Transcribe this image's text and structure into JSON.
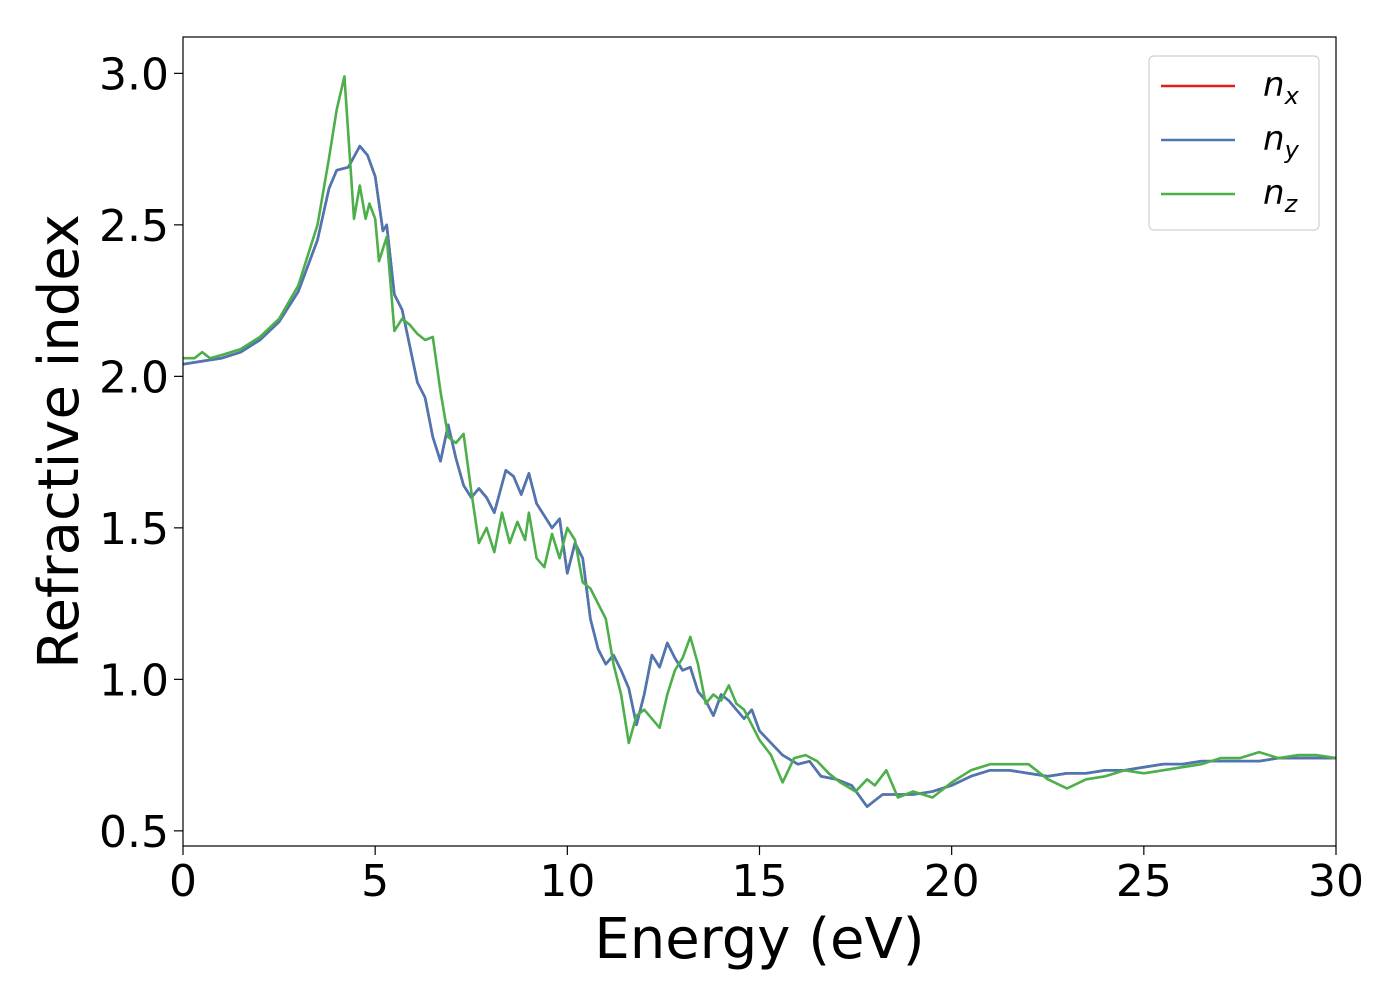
{
  "chart_data": {
    "type": "line",
    "xlabel": "Energy (eV)",
    "ylabel": "Refractive index",
    "xlim": [
      0,
      30
    ],
    "ylim": [
      0.45,
      3.12
    ],
    "xticks": [
      0,
      5,
      10,
      15,
      20,
      25,
      30
    ],
    "xtick_labels": [
      "0",
      "5",
      "10",
      "15",
      "20",
      "25",
      "30"
    ],
    "yticks": [
      0.5,
      1.0,
      1.5,
      2.0,
      2.5,
      3.0
    ],
    "ytick_labels": [
      "0.5",
      "1.0",
      "1.5",
      "2.0",
      "2.5",
      "3.0"
    ],
    "grid": false,
    "legend_position": "top-right",
    "series": [
      {
        "name": "n_x",
        "label_base": "n",
        "label_sub": "x",
        "color": "#e41a1c",
        "points": [
          [
            0,
            2.04
          ],
          [
            0.5,
            2.05
          ],
          [
            1,
            2.06
          ],
          [
            1.5,
            2.08
          ],
          [
            2,
            2.12
          ],
          [
            2.5,
            2.18
          ],
          [
            3,
            2.28
          ],
          [
            3.5,
            2.45
          ],
          [
            3.8,
            2.62
          ],
          [
            4.0,
            2.68
          ],
          [
            4.3,
            2.69
          ],
          [
            4.6,
            2.76
          ],
          [
            4.8,
            2.73
          ],
          [
            5.0,
            2.66
          ],
          [
            5.2,
            2.48
          ],
          [
            5.3,
            2.5
          ],
          [
            5.5,
            2.27
          ],
          [
            5.7,
            2.22
          ],
          [
            5.9,
            2.1
          ],
          [
            6.1,
            1.98
          ],
          [
            6.3,
            1.93
          ],
          [
            6.5,
            1.8
          ],
          [
            6.7,
            1.72
          ],
          [
            6.9,
            1.84
          ],
          [
            7.1,
            1.73
          ],
          [
            7.3,
            1.64
          ],
          [
            7.5,
            1.6
          ],
          [
            7.7,
            1.63
          ],
          [
            7.9,
            1.6
          ],
          [
            8.1,
            1.55
          ],
          [
            8.4,
            1.69
          ],
          [
            8.6,
            1.67
          ],
          [
            8.8,
            1.61
          ],
          [
            9.0,
            1.68
          ],
          [
            9.2,
            1.58
          ],
          [
            9.4,
            1.54
          ],
          [
            9.6,
            1.5
          ],
          [
            9.8,
            1.53
          ],
          [
            10.0,
            1.35
          ],
          [
            10.2,
            1.45
          ],
          [
            10.4,
            1.4
          ],
          [
            10.6,
            1.2
          ],
          [
            10.8,
            1.1
          ],
          [
            11.0,
            1.05
          ],
          [
            11.2,
            1.08
          ],
          [
            11.4,
            1.03
          ],
          [
            11.6,
            0.97
          ],
          [
            11.8,
            0.85
          ],
          [
            12.0,
            0.95
          ],
          [
            12.2,
            1.08
          ],
          [
            12.4,
            1.04
          ],
          [
            12.6,
            1.12
          ],
          [
            12.8,
            1.07
          ],
          [
            13.0,
            1.03
          ],
          [
            13.2,
            1.04
          ],
          [
            13.4,
            0.96
          ],
          [
            13.6,
            0.93
          ],
          [
            13.8,
            0.88
          ],
          [
            14.0,
            0.95
          ],
          [
            14.2,
            0.93
          ],
          [
            14.4,
            0.9
          ],
          [
            14.6,
            0.87
          ],
          [
            14.8,
            0.9
          ],
          [
            15.0,
            0.83
          ],
          [
            15.3,
            0.79
          ],
          [
            15.6,
            0.75
          ],
          [
            16.0,
            0.72
          ],
          [
            16.3,
            0.73
          ],
          [
            16.6,
            0.68
          ],
          [
            17.0,
            0.67
          ],
          [
            17.4,
            0.65
          ],
          [
            17.8,
            0.58
          ],
          [
            18.2,
            0.62
          ],
          [
            18.6,
            0.62
          ],
          [
            19.0,
            0.62
          ],
          [
            19.5,
            0.63
          ],
          [
            20.0,
            0.65
          ],
          [
            20.5,
            0.68
          ],
          [
            21.0,
            0.7
          ],
          [
            21.5,
            0.7
          ],
          [
            22.0,
            0.69
          ],
          [
            22.5,
            0.68
          ],
          [
            23.0,
            0.69
          ],
          [
            23.5,
            0.69
          ],
          [
            24.0,
            0.7
          ],
          [
            24.5,
            0.7
          ],
          [
            25.0,
            0.71
          ],
          [
            25.5,
            0.72
          ],
          [
            26.0,
            0.72
          ],
          [
            26.5,
            0.73
          ],
          [
            27.0,
            0.73
          ],
          [
            27.5,
            0.73
          ],
          [
            28.0,
            0.73
          ],
          [
            28.5,
            0.74
          ],
          [
            29.0,
            0.74
          ],
          [
            29.5,
            0.74
          ],
          [
            30.0,
            0.74
          ]
        ]
      },
      {
        "name": "n_y",
        "label_base": "n",
        "label_sub": "y",
        "color": "#4a78b4",
        "points": [
          [
            0,
            2.04
          ],
          [
            0.5,
            2.05
          ],
          [
            1,
            2.06
          ],
          [
            1.5,
            2.08
          ],
          [
            2,
            2.12
          ],
          [
            2.5,
            2.18
          ],
          [
            3,
            2.28
          ],
          [
            3.5,
            2.45
          ],
          [
            3.8,
            2.62
          ],
          [
            4.0,
            2.68
          ],
          [
            4.3,
            2.69
          ],
          [
            4.6,
            2.76
          ],
          [
            4.8,
            2.73
          ],
          [
            5.0,
            2.66
          ],
          [
            5.2,
            2.48
          ],
          [
            5.3,
            2.5
          ],
          [
            5.5,
            2.27
          ],
          [
            5.7,
            2.22
          ],
          [
            5.9,
            2.1
          ],
          [
            6.1,
            1.98
          ],
          [
            6.3,
            1.93
          ],
          [
            6.5,
            1.8
          ],
          [
            6.7,
            1.72
          ],
          [
            6.9,
            1.84
          ],
          [
            7.1,
            1.73
          ],
          [
            7.3,
            1.64
          ],
          [
            7.5,
            1.6
          ],
          [
            7.7,
            1.63
          ],
          [
            7.9,
            1.6
          ],
          [
            8.1,
            1.55
          ],
          [
            8.4,
            1.69
          ],
          [
            8.6,
            1.67
          ],
          [
            8.8,
            1.61
          ],
          [
            9.0,
            1.68
          ],
          [
            9.2,
            1.58
          ],
          [
            9.4,
            1.54
          ],
          [
            9.6,
            1.5
          ],
          [
            9.8,
            1.53
          ],
          [
            10.0,
            1.35
          ],
          [
            10.2,
            1.45
          ],
          [
            10.4,
            1.4
          ],
          [
            10.6,
            1.2
          ],
          [
            10.8,
            1.1
          ],
          [
            11.0,
            1.05
          ],
          [
            11.2,
            1.08
          ],
          [
            11.4,
            1.03
          ],
          [
            11.6,
            0.97
          ],
          [
            11.8,
            0.85
          ],
          [
            12.0,
            0.95
          ],
          [
            12.2,
            1.08
          ],
          [
            12.4,
            1.04
          ],
          [
            12.6,
            1.12
          ],
          [
            12.8,
            1.07
          ],
          [
            13.0,
            1.03
          ],
          [
            13.2,
            1.04
          ],
          [
            13.4,
            0.96
          ],
          [
            13.6,
            0.93
          ],
          [
            13.8,
            0.88
          ],
          [
            14.0,
            0.95
          ],
          [
            14.2,
            0.93
          ],
          [
            14.4,
            0.9
          ],
          [
            14.6,
            0.87
          ],
          [
            14.8,
            0.9
          ],
          [
            15.0,
            0.83
          ],
          [
            15.3,
            0.79
          ],
          [
            15.6,
            0.75
          ],
          [
            16.0,
            0.72
          ],
          [
            16.3,
            0.73
          ],
          [
            16.6,
            0.68
          ],
          [
            17.0,
            0.67
          ],
          [
            17.4,
            0.65
          ],
          [
            17.8,
            0.58
          ],
          [
            18.2,
            0.62
          ],
          [
            18.6,
            0.62
          ],
          [
            19.0,
            0.62
          ],
          [
            19.5,
            0.63
          ],
          [
            20.0,
            0.65
          ],
          [
            20.5,
            0.68
          ],
          [
            21.0,
            0.7
          ],
          [
            21.5,
            0.7
          ],
          [
            22.0,
            0.69
          ],
          [
            22.5,
            0.68
          ],
          [
            23.0,
            0.69
          ],
          [
            23.5,
            0.69
          ],
          [
            24.0,
            0.7
          ],
          [
            24.5,
            0.7
          ],
          [
            25.0,
            0.71
          ],
          [
            25.5,
            0.72
          ],
          [
            26.0,
            0.72
          ],
          [
            26.5,
            0.73
          ],
          [
            27.0,
            0.73
          ],
          [
            27.5,
            0.73
          ],
          [
            28.0,
            0.73
          ],
          [
            28.5,
            0.74
          ],
          [
            29.0,
            0.74
          ],
          [
            29.5,
            0.74
          ],
          [
            30.0,
            0.74
          ]
        ]
      },
      {
        "name": "n_z",
        "label_base": "n",
        "label_sub": "z",
        "color": "#4daf4a",
        "points": [
          [
            0,
            2.06
          ],
          [
            0.3,
            2.06
          ],
          [
            0.5,
            2.08
          ],
          [
            0.7,
            2.06
          ],
          [
            1,
            2.07
          ],
          [
            1.5,
            2.09
          ],
          [
            2,
            2.13
          ],
          [
            2.5,
            2.19
          ],
          [
            3,
            2.3
          ],
          [
            3.5,
            2.5
          ],
          [
            3.8,
            2.72
          ],
          [
            4.0,
            2.88
          ],
          [
            4.2,
            2.99
          ],
          [
            4.3,
            2.8
          ],
          [
            4.45,
            2.52
          ],
          [
            4.6,
            2.63
          ],
          [
            4.75,
            2.52
          ],
          [
            4.85,
            2.57
          ],
          [
            5.0,
            2.52
          ],
          [
            5.1,
            2.38
          ],
          [
            5.3,
            2.46
          ],
          [
            5.5,
            2.15
          ],
          [
            5.7,
            2.19
          ],
          [
            5.9,
            2.17
          ],
          [
            6.1,
            2.14
          ],
          [
            6.3,
            2.12
          ],
          [
            6.5,
            2.13
          ],
          [
            6.7,
            1.95
          ],
          [
            6.9,
            1.8
          ],
          [
            7.1,
            1.78
          ],
          [
            7.3,
            1.81
          ],
          [
            7.5,
            1.62
          ],
          [
            7.7,
            1.45
          ],
          [
            7.9,
            1.5
          ],
          [
            8.1,
            1.42
          ],
          [
            8.3,
            1.55
          ],
          [
            8.5,
            1.45
          ],
          [
            8.7,
            1.52
          ],
          [
            8.9,
            1.46
          ],
          [
            9.0,
            1.55
          ],
          [
            9.2,
            1.4
          ],
          [
            9.4,
            1.37
          ],
          [
            9.6,
            1.48
          ],
          [
            9.8,
            1.4
          ],
          [
            10.0,
            1.5
          ],
          [
            10.2,
            1.46
          ],
          [
            10.4,
            1.32
          ],
          [
            10.6,
            1.3
          ],
          [
            10.8,
            1.25
          ],
          [
            11.0,
            1.2
          ],
          [
            11.2,
            1.05
          ],
          [
            11.4,
            0.95
          ],
          [
            11.6,
            0.79
          ],
          [
            11.8,
            0.88
          ],
          [
            12.0,
            0.9
          ],
          [
            12.2,
            0.87
          ],
          [
            12.4,
            0.84
          ],
          [
            12.6,
            0.95
          ],
          [
            12.8,
            1.03
          ],
          [
            13.0,
            1.07
          ],
          [
            13.2,
            1.14
          ],
          [
            13.4,
            1.05
          ],
          [
            13.6,
            0.92
          ],
          [
            13.8,
            0.95
          ],
          [
            14.0,
            0.93
          ],
          [
            14.2,
            0.98
          ],
          [
            14.4,
            0.92
          ],
          [
            14.6,
            0.9
          ],
          [
            14.8,
            0.85
          ],
          [
            15.0,
            0.8
          ],
          [
            15.3,
            0.75
          ],
          [
            15.6,
            0.66
          ],
          [
            15.9,
            0.74
          ],
          [
            16.2,
            0.75
          ],
          [
            16.5,
            0.73
          ],
          [
            16.8,
            0.69
          ],
          [
            17.1,
            0.66
          ],
          [
            17.5,
            0.63
          ],
          [
            17.8,
            0.67
          ],
          [
            18.0,
            0.65
          ],
          [
            18.3,
            0.7
          ],
          [
            18.6,
            0.61
          ],
          [
            19.0,
            0.63
          ],
          [
            19.5,
            0.61
          ],
          [
            20.0,
            0.66
          ],
          [
            20.5,
            0.7
          ],
          [
            21.0,
            0.72
          ],
          [
            21.5,
            0.72
          ],
          [
            22.0,
            0.72
          ],
          [
            22.5,
            0.67
          ],
          [
            23.0,
            0.64
          ],
          [
            23.5,
            0.67
          ],
          [
            24.0,
            0.68
          ],
          [
            24.5,
            0.7
          ],
          [
            25.0,
            0.69
          ],
          [
            25.5,
            0.7
          ],
          [
            26.0,
            0.71
          ],
          [
            26.5,
            0.72
          ],
          [
            27.0,
            0.74
          ],
          [
            27.5,
            0.74
          ],
          [
            28.0,
            0.76
          ],
          [
            28.5,
            0.74
          ],
          [
            29.0,
            0.75
          ],
          [
            29.5,
            0.75
          ],
          [
            30.0,
            0.74
          ]
        ]
      }
    ]
  }
}
